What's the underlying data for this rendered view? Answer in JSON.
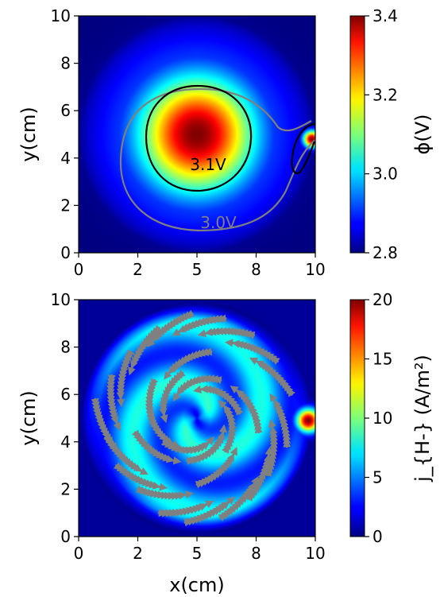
{
  "chart_data": [
    {
      "type": "heatmap",
      "panel": "top",
      "title": "",
      "xlabel": "",
      "ylabel": "y(cm)",
      "xlim": [
        0,
        10
      ],
      "ylim": [
        0,
        10
      ],
      "xticks": [
        "0",
        "2",
        "5",
        "8",
        "10"
      ],
      "xtick_values": [
        0,
        2.5,
        5,
        7.5,
        10
      ],
      "yticks": [
        "0",
        "2",
        "4",
        "6",
        "8",
        "10"
      ],
      "ytick_values": [
        0,
        2,
        4,
        6,
        8,
        10
      ],
      "colormap": "jet",
      "colorbar": {
        "label": "ϕ(V)",
        "range": [
          2.8,
          3.4
        ],
        "ticks": [
          "2.8",
          "3.0",
          "3.2",
          "3.4"
        ],
        "tick_values": [
          2.8,
          3.0,
          3.2,
          3.4
        ]
      },
      "background_value": 2.8,
      "features": [
        {
          "kind": "gaussian_peak",
          "center": [
            5.0,
            5.0
          ],
          "peak": 3.4,
          "sigma": 1.3
        },
        {
          "kind": "gaussian_peak",
          "center": [
            9.85,
            4.8
          ],
          "peak": 3.4,
          "sigma": 0.25
        }
      ],
      "contours": [
        {
          "label": "3.1V",
          "level": 3.1,
          "color": "#000000",
          "label_position": [
            5.5,
            3.8
          ]
        },
        {
          "label": "3.0V",
          "level": 3.0,
          "color": "#808080",
          "label_position": [
            5.9,
            1.3
          ]
        }
      ]
    },
    {
      "type": "heatmap",
      "panel": "bottom",
      "title": "",
      "xlabel": "x(cm)",
      "ylabel": "y(cm)",
      "xlim": [
        0,
        10
      ],
      "ylim": [
        0,
        10
      ],
      "xticks": [
        "0",
        "2",
        "5",
        "8",
        "10"
      ],
      "xtick_values": [
        0,
        2.5,
        5,
        7.5,
        10
      ],
      "yticks": [
        "0",
        "2",
        "4",
        "6",
        "8",
        "10"
      ],
      "ytick_values": [
        0,
        2,
        4,
        6,
        8,
        10
      ],
      "colormap": "jet",
      "colorbar": {
        "label": "j_{H-} (A/m²)",
        "range": [
          0,
          20
        ],
        "ticks": [
          "0",
          "5",
          "10",
          "15",
          "20"
        ],
        "tick_values": [
          0,
          5,
          10,
          15,
          20
        ]
      },
      "features": [
        {
          "kind": "spiral_disk",
          "center": [
            5.0,
            5.0
          ],
          "radius": 5.0,
          "arms": 2,
          "typical_value": 6
        },
        {
          "kind": "gaussian_peak",
          "center": [
            9.7,
            4.9
          ],
          "peak": 20,
          "sigma": 0.35
        }
      ],
      "streamlines": {
        "color": "#808080",
        "pattern": "counter-clockwise swirl"
      }
    }
  ]
}
